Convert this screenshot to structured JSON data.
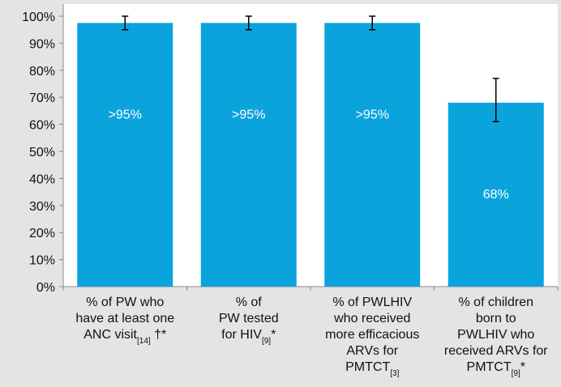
{
  "chart_data": {
    "type": "bar",
    "categories": [
      [
        "% of PW who",
        "have at least one",
        [
          "ANC visit",
          {
            "sub": "[14]"
          },
          " †*"
        ]
      ],
      [
        "% of",
        "PW tested",
        [
          "for HIV",
          {
            "sub": "[9]"
          },
          "*"
        ]
      ],
      [
        "% of PWLHIV",
        "who received",
        "more efficacious",
        "ARVs for",
        [
          "PMTCT",
          {
            "sub": "[3]"
          }
        ]
      ],
      [
        "% of children",
        "born to",
        "PWLHIV who",
        "received ARVs for",
        [
          "PMTCT",
          {
            "sub": "[9]"
          },
          "*"
        ]
      ]
    ],
    "values": [
      97.5,
      97.5,
      97.5,
      68
    ],
    "value_labels": [
      ">95%",
      ">95%",
      ">95%",
      "68%"
    ],
    "error_minus": [
      2.5,
      2.5,
      2.5,
      7
    ],
    "error_plus": [
      2.5,
      2.5,
      2.5,
      9
    ],
    "color": "#0ba3dc",
    "ylim": [
      0,
      100
    ],
    "yticks": [
      {
        "value": 0,
        "label": "0%"
      },
      {
        "value": 10,
        "label": "10%"
      },
      {
        "value": 20,
        "label": "20%"
      },
      {
        "value": 30,
        "label": "30%"
      },
      {
        "value": 40,
        "label": "40%"
      },
      {
        "value": 50,
        "label": "50%"
      },
      {
        "value": 60,
        "label": "60%"
      },
      {
        "value": 70,
        "label": "70%"
      },
      {
        "value": 80,
        "label": "80%"
      },
      {
        "value": 90,
        "label": "90%"
      },
      {
        "value": 100,
        "label": "100%"
      }
    ]
  }
}
